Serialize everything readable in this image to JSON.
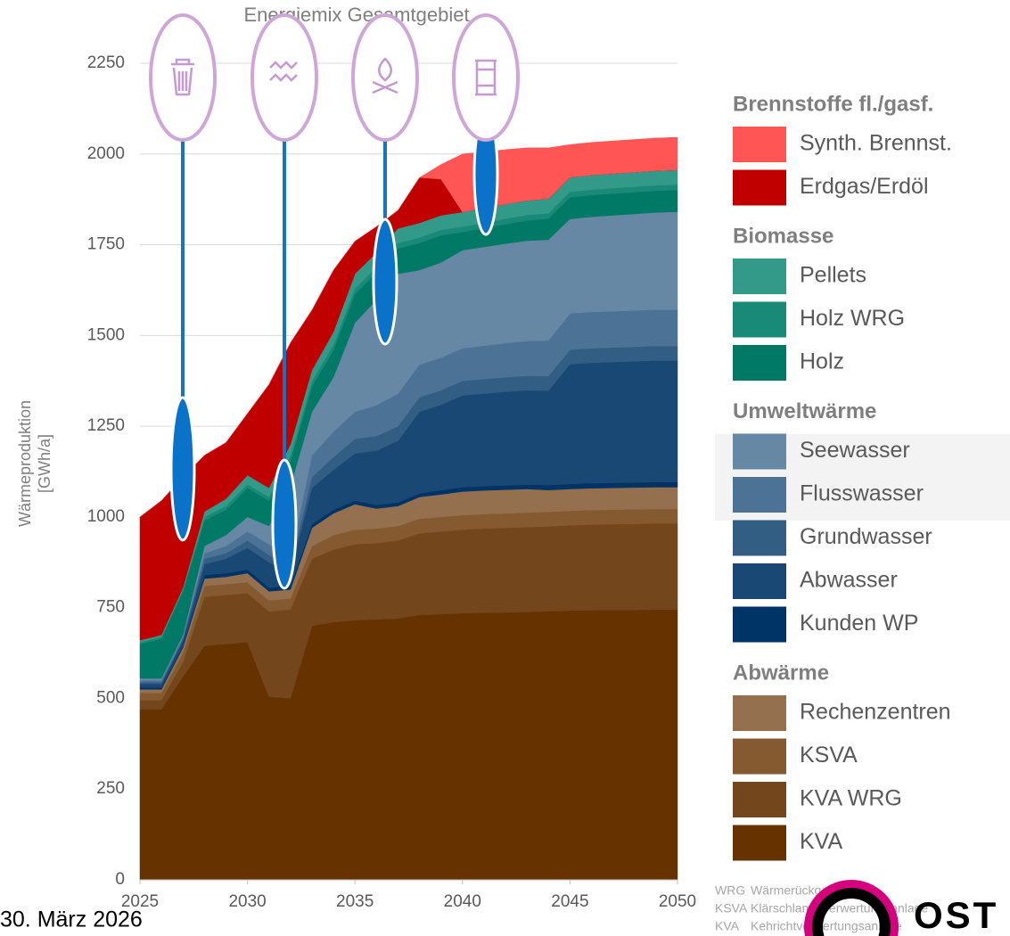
{
  "chart_data": {
    "type": "stacked_area",
    "title": "Energiemix Gesamtgebiet",
    "ylabel": [
      "Wärmeproduktion",
      "[GWh/a]"
    ],
    "x": [
      2025,
      2026,
      2027,
      2028,
      2029,
      2030,
      2031,
      2032,
      2033,
      2034,
      2035,
      2036,
      2037,
      2038,
      2039,
      2040,
      2041,
      2042,
      2043,
      2044,
      2045,
      2046,
      2047,
      2048,
      2049,
      2050
    ],
    "xlim": [
      2025,
      2050
    ],
    "xticks": [
      2025,
      2030,
      2035,
      2040,
      2045,
      2050
    ],
    "ylim": [
      0,
      2250
    ],
    "yticks": [
      0,
      250,
      500,
      750,
      1000,
      1250,
      1500,
      1750,
      2000,
      2250
    ],
    "grid": true,
    "legend": "right",
    "series": [
      {
        "name": "KVA",
        "group": "Abwärme",
        "color": "#653200",
        "values": [
          470,
          470,
          560,
          645,
          650,
          655,
          505,
          500,
          700,
          710,
          715,
          718,
          720,
          730,
          732,
          735,
          736,
          737,
          738,
          740,
          742,
          743,
          744,
          744,
          745,
          745
        ]
      },
      {
        "name": "KVA WRG",
        "group": "Abwärme",
        "color": "#74461c",
        "values": [
          25,
          25,
          40,
          135,
          135,
          135,
          235,
          245,
          185,
          200,
          210,
          210,
          215,
          225,
          228,
          230,
          232,
          233,
          234,
          234,
          235,
          236,
          236,
          237,
          237,
          237
        ]
      },
      {
        "name": "KSVA",
        "group": "Abwärme",
        "color": "#855a30",
        "values": [
          20,
          20,
          25,
          30,
          30,
          30,
          30,
          30,
          35,
          40,
          40,
          40,
          40,
          40,
          40,
          40,
          40,
          40,
          40,
          40,
          40,
          40,
          40,
          40,
          40,
          40
        ]
      },
      {
        "name": "Rechenzentren",
        "group": "Abwärme",
        "color": "#94704e",
        "values": [
          10,
          10,
          15,
          20,
          20,
          25,
          25,
          25,
          50,
          60,
          70,
          55,
          55,
          60,
          62,
          65,
          65,
          65,
          65,
          60,
          60,
          60,
          60,
          60,
          60,
          60
        ]
      },
      {
        "name": "Kunden WP",
        "group": "Umweltwärme",
        "color": "#003366",
        "values": [
          5,
          5,
          5,
          10,
          10,
          10,
          10,
          10,
          10,
          10,
          10,
          10,
          10,
          10,
          12,
          12,
          12,
          12,
          12,
          14,
          14,
          14,
          14,
          14,
          14,
          14
        ]
      },
      {
        "name": "Abwasser",
        "group": "Umweltwärme",
        "color": "#1a4874",
        "values": [
          10,
          10,
          15,
          30,
          40,
          60,
          70,
          40,
          100,
          110,
          130,
          150,
          170,
          225,
          235,
          253,
          255,
          258,
          260,
          260,
          330,
          332,
          333,
          334,
          335,
          335
        ]
      },
      {
        "name": "Grundwasser",
        "group": "Umweltwärme",
        "color": "#335e84",
        "values": [
          5,
          5,
          5,
          15,
          15,
          20,
          20,
          15,
          30,
          35,
          40,
          40,
          40,
          40,
          40,
          40,
          40,
          40,
          40,
          40,
          40,
          40,
          40,
          40,
          40,
          40
        ]
      },
      {
        "name": "Flusswasser",
        "group": "Umweltwärme",
        "color": "#4c7396",
        "values": [
          5,
          5,
          5,
          15,
          20,
          25,
          30,
          20,
          60,
          70,
          75,
          85,
          90,
          90,
          90,
          90,
          92,
          94,
          96,
          98,
          100,
          100,
          100,
          100,
          100,
          100
        ]
      },
      {
        "name": "Seewasser",
        "group": "Umweltwärme",
        "color": "#6688a5",
        "values": [
          5,
          5,
          5,
          20,
          30,
          40,
          50,
          200,
          120,
          150,
          245,
          290,
          330,
          260,
          262,
          270,
          272,
          274,
          276,
          278,
          260,
          262,
          264,
          266,
          268,
          270
        ]
      },
      {
        "name": "Holz",
        "group": "Biomasse",
        "color": "#007a66",
        "values": [
          95,
          110,
          120,
          70,
          70,
          80,
          70,
          70,
          70,
          75,
          80,
          75,
          70,
          75,
          75,
          50,
          52,
          54,
          56,
          58,
          60,
          60,
          60,
          60,
          60,
          60
        ]
      },
      {
        "name": "Holz WRG",
        "group": "Biomasse",
        "color": "#1a8a78",
        "values": [
          5,
          5,
          5,
          10,
          10,
          10,
          10,
          15,
          15,
          15,
          15,
          15,
          15,
          15,
          15,
          15,
          15,
          15,
          15,
          15,
          15,
          15,
          15,
          15,
          15,
          15
        ]
      },
      {
        "name": "Pellets",
        "group": "Biomasse",
        "color": "#339a89",
        "values": [
          5,
          5,
          5,
          15,
          20,
          25,
          25,
          30,
          30,
          35,
          40,
          40,
          40,
          40,
          40,
          40,
          40,
          40,
          40,
          40,
          40,
          40,
          40,
          40,
          40,
          40
        ]
      },
      {
        "name": "Erdgas/Erdöl",
        "group": "Brennstoffe fl./gasf.",
        "color": "#c00000",
        "values": [
          340,
          370,
          305,
          155,
          155,
          170,
          285,
          280,
          165,
          170,
          90,
          72,
          50,
          125,
          100,
          0,
          0,
          0,
          0,
          0,
          0,
          0,
          0,
          0,
          0,
          0
        ]
      },
      {
        "name": "Synth. Brennst.",
        "group": "Brennstoffe fl./gasf.",
        "color": "#ff5555",
        "values": [
          0,
          0,
          0,
          0,
          0,
          0,
          0,
          0,
          0,
          0,
          0,
          0,
          0,
          0,
          40,
          160,
          155,
          150,
          145,
          140,
          90,
          90,
          90,
          90,
          90,
          90
        ]
      }
    ]
  },
  "footnotes": [
    {
      "abbr": "WRG",
      "text": "Wärmerückgewinnung"
    },
    {
      "abbr": "KSVA",
      "text": "Klärschlammverwertungsanlage"
    },
    {
      "abbr": "KVA",
      "text": "Kehrichtverwertungsanlage"
    }
  ],
  "date": "30. März 2026",
  "logo": "OST"
}
